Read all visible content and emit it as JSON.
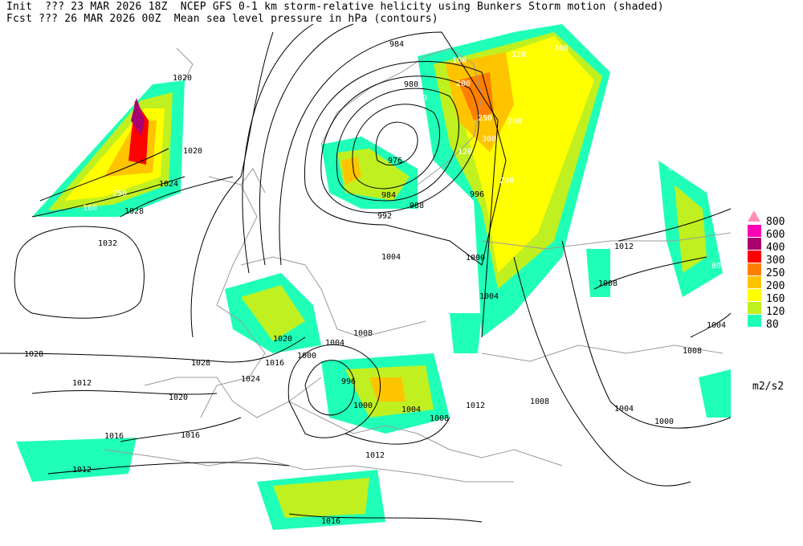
{
  "header": {
    "line1": "Init  ??? 23 MAR 2026 18Z  NCEP GFS 0-1 km storm-relative helicity using Bunkers Storm motion (shaded)",
    "line2": "Fcst ??? 26 MAR 2026 00Z  Mean sea level pressure in hPa (contours)"
  },
  "legend": {
    "units": "m2/s2",
    "levels": [
      {
        "label": "800",
        "color": "#ff90b8"
      },
      {
        "label": "600",
        "color": "#ff00b4"
      },
      {
        "label": "400",
        "color": "#a8006e"
      },
      {
        "label": "300",
        "color": "#ff0000"
      },
      {
        "label": "250",
        "color": "#ff8000"
      },
      {
        "label": "200",
        "color": "#ffc400"
      },
      {
        "label": "160",
        "color": "#ffff00"
      },
      {
        "label": "120",
        "color": "#c0f020"
      },
      {
        "label": "80",
        "color": "#20ffb8"
      }
    ]
  },
  "isobar_labels": [
    "984",
    "980",
    "976",
    "984",
    "988",
    "992",
    "996",
    "1000",
    "1004",
    "1004",
    "1008",
    "1012",
    "1016",
    "1020",
    "1020",
    "1024",
    "1028",
    "1032",
    "1028",
    "1028",
    "1024",
    "1020",
    "1016",
    "1012",
    "1008",
    "1004",
    "1000",
    "996",
    "1000",
    "1004",
    "1008",
    "1012",
    "1016",
    "1020",
    "1004",
    "1008",
    "1012",
    "1016",
    "1000",
    "1004",
    "1008",
    "1012"
  ],
  "helicity_labels": [
    "160",
    "200",
    "250",
    "300",
    "120",
    "80",
    "200",
    "250",
    "160",
    "120",
    "80",
    "160",
    "200",
    "120",
    "80"
  ]
}
